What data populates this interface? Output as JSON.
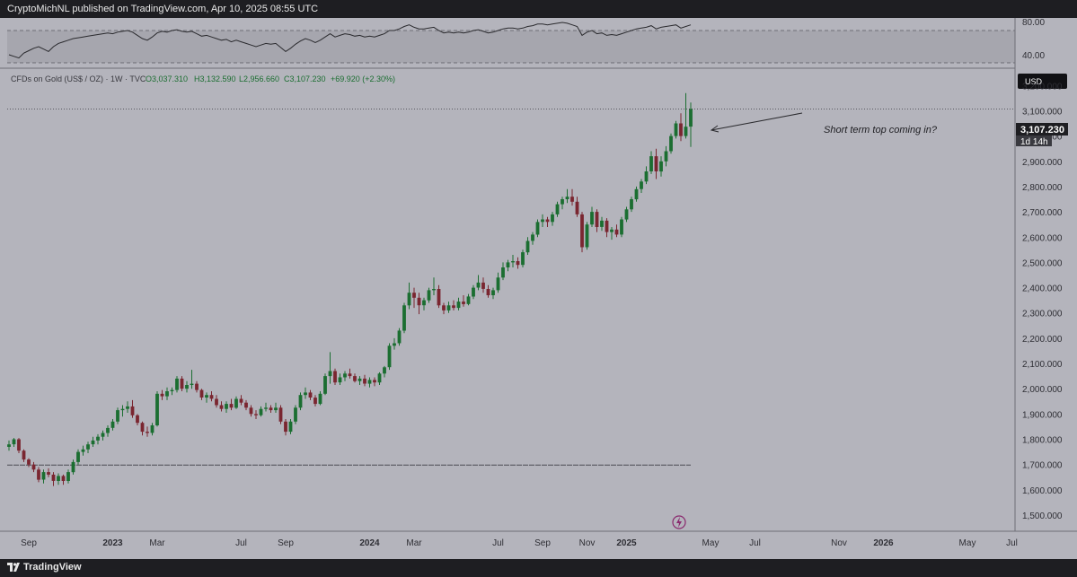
{
  "header": {
    "published": "CryptoMichNL published on TradingView.com, Apr 10, 2025 08:55 UTC"
  },
  "footer": {
    "brand": "TradingView"
  },
  "symbol_line": {
    "name": "CFDs on Gold (US$ / OZ) · 1W · TVC",
    "open": "O3,037.310",
    "high": "H3,132.590",
    "low": "L2,956.660",
    "close": "C3,107.230",
    "change": "+69.920 (+2.30%)"
  },
  "currency_badge": "USD",
  "price_label": {
    "value": "3,107.230",
    "countdown": "1d 14h"
  },
  "annotation": "Short term top coming in?",
  "colors": {
    "up": "#1b6e31",
    "down": "#7a2630",
    "background": "#b4b4bc",
    "rsi_band": "#a6a6ae"
  },
  "chart_data": {
    "type": "candlestick",
    "title": "CFDs on Gold (US$ / OZ) · 1W · TVC",
    "ylim": [
      1450,
      3280
    ],
    "y_ticks": [
      "3,200.000",
      "3,100.000",
      "3,000.000",
      "2,900.000",
      "2,800.000",
      "2,700.000",
      "2,600.000",
      "2,500.000",
      "2,400.000",
      "2,300.000",
      "2,200.000",
      "2,100.000",
      "2,000.000",
      "1,900.000",
      "1,800.000",
      "1,700.000",
      "1,600.000",
      "1,500.000"
    ],
    "y_tick_values": [
      3200,
      3100,
      3000,
      2900,
      2800,
      2700,
      2600,
      2500,
      2400,
      2300,
      2200,
      2100,
      2000,
      1900,
      1800,
      1700,
      1600,
      1500
    ],
    "x_ticks": [
      {
        "label": "Sep",
        "week": 4,
        "bold": false
      },
      {
        "label": "2023",
        "week": 21,
        "bold": true
      },
      {
        "label": "Mar",
        "week": 30,
        "bold": false
      },
      {
        "label": "Jul",
        "week": 47,
        "bold": false
      },
      {
        "label": "Sep",
        "week": 56,
        "bold": false
      },
      {
        "label": "2024",
        "week": 73,
        "bold": true
      },
      {
        "label": "Mar",
        "week": 82,
        "bold": false
      },
      {
        "label": "Jul",
        "week": 99,
        "bold": false
      },
      {
        "label": "Sep",
        "week": 108,
        "bold": false
      },
      {
        "label": "Nov",
        "week": 117,
        "bold": false
      },
      {
        "label": "2025",
        "week": 125,
        "bold": true
      },
      {
        "label": "May",
        "week": 142,
        "bold": false
      },
      {
        "label": "Jul",
        "week": 151,
        "bold": false
      },
      {
        "label": "Nov",
        "week": 168,
        "bold": false
      },
      {
        "label": "2026",
        "week": 177,
        "bold": true
      },
      {
        "label": "May",
        "week": 194,
        "bold": false
      },
      {
        "label": "Jul",
        "week": 203,
        "bold": false
      }
    ],
    "last_price": 3107.23,
    "support_level": 1698,
    "candles": [
      [
        1770,
        1795,
        1755,
        1780
      ],
      [
        1780,
        1805,
        1770,
        1800
      ],
      [
        1800,
        1805,
        1745,
        1755
      ],
      [
        1755,
        1760,
        1710,
        1720
      ],
      [
        1720,
        1725,
        1690,
        1700
      ],
      [
        1700,
        1710,
        1670,
        1680
      ],
      [
        1680,
        1690,
        1630,
        1640
      ],
      [
        1640,
        1680,
        1625,
        1670
      ],
      [
        1670,
        1685,
        1650,
        1660
      ],
      [
        1660,
        1670,
        1615,
        1635
      ],
      [
        1635,
        1665,
        1620,
        1655
      ],
      [
        1655,
        1660,
        1620,
        1635
      ],
      [
        1635,
        1680,
        1625,
        1670
      ],
      [
        1670,
        1720,
        1660,
        1710
      ],
      [
        1710,
        1760,
        1700,
        1750
      ],
      [
        1750,
        1775,
        1735,
        1760
      ],
      [
        1760,
        1790,
        1745,
        1780
      ],
      [
        1780,
        1810,
        1770,
        1795
      ],
      [
        1795,
        1820,
        1780,
        1810
      ],
      [
        1810,
        1835,
        1795,
        1825
      ],
      [
        1825,
        1855,
        1810,
        1845
      ],
      [
        1845,
        1880,
        1835,
        1870
      ],
      [
        1870,
        1925,
        1860,
        1915
      ],
      [
        1915,
        1935,
        1890,
        1920
      ],
      [
        1920,
        1950,
        1905,
        1930
      ],
      [
        1930,
        1955,
        1885,
        1895
      ],
      [
        1895,
        1900,
        1855,
        1865
      ],
      [
        1865,
        1870,
        1815,
        1830
      ],
      [
        1830,
        1850,
        1810,
        1825
      ],
      [
        1825,
        1865,
        1815,
        1855
      ],
      [
        1855,
        1990,
        1850,
        1980
      ],
      [
        1980,
        1995,
        1955,
        1970
      ],
      [
        1970,
        2005,
        1955,
        1990
      ],
      [
        1990,
        2005,
        1975,
        1995
      ],
      [
        1995,
        2050,
        1985,
        2040
      ],
      [
        2040,
        2050,
        1990,
        2000
      ],
      [
        2000,
        2030,
        1985,
        2015
      ],
      [
        2015,
        2075,
        2000,
        2020
      ],
      [
        2020,
        2030,
        1985,
        1995
      ],
      [
        1995,
        2000,
        1955,
        1965
      ],
      [
        1965,
        1985,
        1945,
        1975
      ],
      [
        1975,
        1990,
        1950,
        1960
      ],
      [
        1960,
        1975,
        1925,
        1935
      ],
      [
        1935,
        1950,
        1910,
        1920
      ],
      [
        1920,
        1950,
        1905,
        1940
      ],
      [
        1940,
        1960,
        1915,
        1925
      ],
      [
        1925,
        1970,
        1920,
        1960
      ],
      [
        1960,
        1975,
        1935,
        1945
      ],
      [
        1945,
        1955,
        1915,
        1925
      ],
      [
        1925,
        1935,
        1890,
        1900
      ],
      [
        1900,
        1915,
        1880,
        1895
      ],
      [
        1895,
        1930,
        1890,
        1920
      ],
      [
        1920,
        1945,
        1910,
        1925
      ],
      [
        1925,
        1935,
        1905,
        1915
      ],
      [
        1915,
        1945,
        1905,
        1925
      ],
      [
        1925,
        1935,
        1860,
        1870
      ],
      [
        1870,
        1880,
        1815,
        1830
      ],
      [
        1830,
        1880,
        1820,
        1870
      ],
      [
        1870,
        1935,
        1860,
        1925
      ],
      [
        1925,
        1985,
        1915,
        1975
      ],
      [
        1975,
        2005,
        1960,
        1985
      ],
      [
        1985,
        1995,
        1955,
        1965
      ],
      [
        1965,
        1975,
        1930,
        1940
      ],
      [
        1940,
        1990,
        1935,
        1980
      ],
      [
        1980,
        2060,
        1975,
        2050
      ],
      [
        2050,
        2145,
        2020,
        2070
      ],
      [
        2070,
        2080,
        2015,
        2025
      ],
      [
        2025,
        2060,
        2015,
        2045
      ],
      [
        2045,
        2070,
        2030,
        2060
      ],
      [
        2060,
        2080,
        2040,
        2050
      ],
      [
        2050,
        2060,
        2025,
        2030
      ],
      [
        2030,
        2050,
        2015,
        2040
      ],
      [
        2040,
        2055,
        2010,
        2020
      ],
      [
        2020,
        2045,
        2005,
        2035
      ],
      [
        2035,
        2045,
        2010,
        2025
      ],
      [
        2025,
        2065,
        2015,
        2060
      ],
      [
        2060,
        2090,
        2045,
        2085
      ],
      [
        2085,
        2180,
        2075,
        2170
      ],
      [
        2170,
        2200,
        2155,
        2180
      ],
      [
        2180,
        2240,
        2170,
        2230
      ],
      [
        2230,
        2340,
        2220,
        2330
      ],
      [
        2330,
        2420,
        2315,
        2380
      ],
      [
        2380,
        2400,
        2320,
        2360
      ],
      [
        2360,
        2380,
        2295,
        2330
      ],
      [
        2330,
        2360,
        2310,
        2350
      ],
      [
        2350,
        2400,
        2340,
        2390
      ],
      [
        2390,
        2440,
        2370,
        2395
      ],
      [
        2395,
        2410,
        2320,
        2330
      ],
      [
        2330,
        2340,
        2295,
        2310
      ],
      [
        2310,
        2345,
        2300,
        2330
      ],
      [
        2330,
        2350,
        2310,
        2320
      ],
      [
        2320,
        2360,
        2310,
        2345
      ],
      [
        2345,
        2370,
        2325,
        2335
      ],
      [
        2335,
        2375,
        2330,
        2365
      ],
      [
        2365,
        2410,
        2355,
        2400
      ],
      [
        2400,
        2450,
        2390,
        2420
      ],
      [
        2420,
        2440,
        2380,
        2395
      ],
      [
        2395,
        2410,
        2360,
        2370
      ],
      [
        2370,
        2400,
        2355,
        2390
      ],
      [
        2390,
        2460,
        2380,
        2440
      ],
      [
        2440,
        2500,
        2430,
        2480
      ],
      [
        2480,
        2510,
        2465,
        2500
      ],
      [
        2500,
        2530,
        2480,
        2505
      ],
      [
        2505,
        2520,
        2475,
        2490
      ],
      [
        2490,
        2550,
        2480,
        2540
      ],
      [
        2540,
        2600,
        2530,
        2585
      ],
      [
        2585,
        2620,
        2570,
        2610
      ],
      [
        2610,
        2670,
        2600,
        2660
      ],
      [
        2660,
        2690,
        2640,
        2670
      ],
      [
        2670,
        2680,
        2640,
        2660
      ],
      [
        2660,
        2700,
        2645,
        2690
      ],
      [
        2690,
        2740,
        2680,
        2730
      ],
      [
        2730,
        2760,
        2710,
        2750
      ],
      [
        2750,
        2790,
        2735,
        2760
      ],
      [
        2760,
        2790,
        2725,
        2740
      ],
      [
        2740,
        2760,
        2680,
        2690
      ],
      [
        2690,
        2700,
        2540,
        2560
      ],
      [
        2560,
        2660,
        2550,
        2650
      ],
      [
        2650,
        2720,
        2640,
        2700
      ],
      [
        2700,
        2710,
        2620,
        2640
      ],
      [
        2640,
        2680,
        2625,
        2665
      ],
      [
        2665,
        2675,
        2600,
        2620
      ],
      [
        2620,
        2640,
        2590,
        2630
      ],
      [
        2630,
        2650,
        2600,
        2610
      ],
      [
        2610,
        2680,
        2600,
        2670
      ],
      [
        2670,
        2720,
        2660,
        2710
      ],
      [
        2710,
        2760,
        2700,
        2750
      ],
      [
        2750,
        2800,
        2740,
        2790
      ],
      [
        2790,
        2830,
        2775,
        2820
      ],
      [
        2820,
        2880,
        2810,
        2860
      ],
      [
        2860,
        2940,
        2850,
        2920
      ],
      [
        2920,
        2950,
        2830,
        2860
      ],
      [
        2860,
        2920,
        2840,
        2900
      ],
      [
        2900,
        2960,
        2880,
        2940
      ],
      [
        2940,
        3010,
        2930,
        3000
      ],
      [
        3000,
        3060,
        2990,
        3050
      ],
      [
        3050,
        3090,
        2980,
        3000
      ],
      [
        3000,
        3170,
        2990,
        3037
      ],
      [
        3037.31,
        3132.59,
        2956.66,
        3107.23
      ]
    ]
  },
  "rsi": {
    "labels": [
      "80.00",
      "40.00"
    ],
    "values": [
      50,
      48,
      46,
      52,
      55,
      58,
      60,
      57,
      54,
      60,
      64,
      66,
      68,
      70,
      71,
      72,
      73,
      74,
      75,
      76,
      77,
      76,
      78,
      79,
      80,
      78,
      74,
      70,
      68,
      72,
      77,
      79,
      78,
      80,
      81,
      79,
      78,
      79,
      76,
      73,
      74,
      72,
      70,
      68,
      69,
      66,
      68,
      66,
      64,
      62,
      60,
      62,
      64,
      63,
      64,
      59,
      54,
      58,
      63,
      67,
      70,
      68,
      65,
      68,
      72,
      76,
      72,
      74,
      76,
      75,
      73,
      74,
      72,
      73,
      72,
      74,
      76,
      80,
      80,
      82,
      85,
      87,
      84,
      82,
      82,
      83,
      84,
      80,
      77,
      78,
      77,
      78,
      77,
      78,
      80,
      81,
      79,
      77,
      78,
      80,
      82,
      83,
      83,
      82,
      83,
      85,
      86,
      88,
      88,
      87,
      88,
      89,
      90,
      89,
      87,
      85,
      74,
      78,
      80,
      76,
      77,
      74,
      75,
      74,
      76,
      78,
      80,
      82,
      83,
      84,
      86,
      82,
      84,
      85,
      86,
      87,
      83,
      85,
      87
    ]
  }
}
